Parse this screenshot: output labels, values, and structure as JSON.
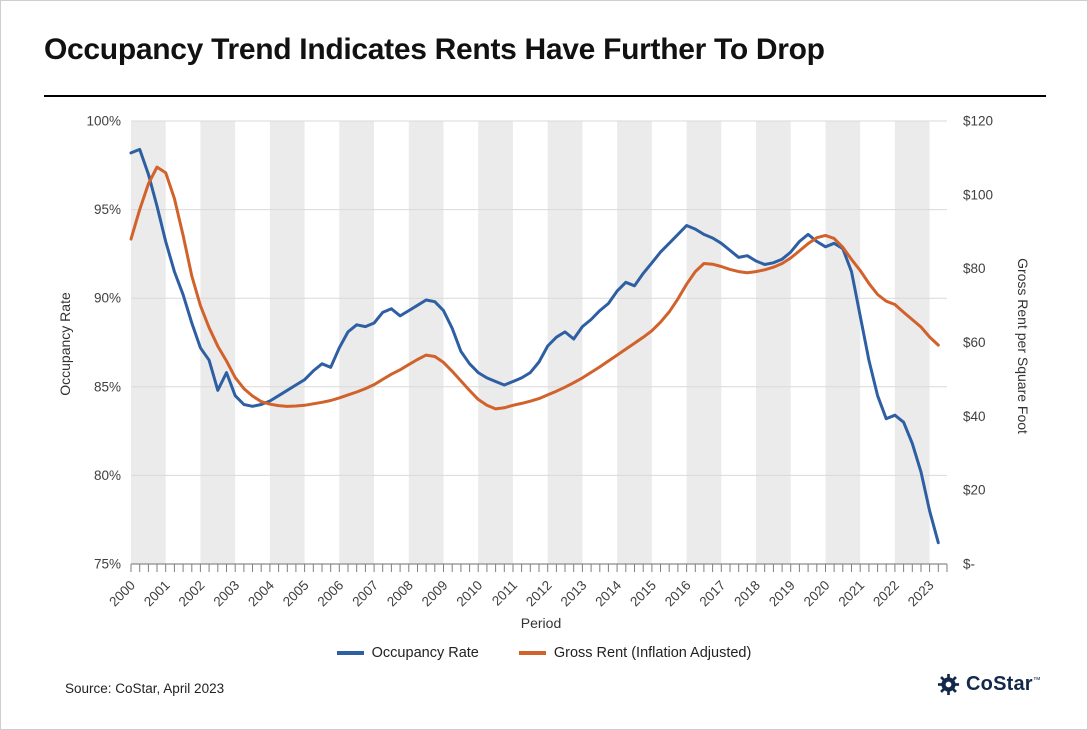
{
  "header": {
    "title": "Occupancy Trend Indicates Rents Have Further To Drop"
  },
  "footer": {
    "source": "Source: CoStar, April 2023",
    "logo_text": "CoStar",
    "logo_tm": "™"
  },
  "chart_data": {
    "type": "line",
    "title": "Occupancy Trend Indicates Rents Have Further To Drop",
    "xlabel": "Period",
    "y_left_label": "Occupancy Rate",
    "y_right_label": "Gross Rent per Square Foot",
    "x_start_year": 2000,
    "x_end_year": 2023.5,
    "x_tick_years": [
      2000,
      2001,
      2002,
      2003,
      2004,
      2005,
      2006,
      2007,
      2008,
      2009,
      2010,
      2011,
      2012,
      2013,
      2014,
      2015,
      2016,
      2017,
      2018,
      2019,
      2020,
      2021,
      2022,
      2023
    ],
    "y_left_range": [
      75,
      100
    ],
    "y_right_range": [
      0,
      120
    ],
    "y_left_ticks": [
      {
        "v": 75,
        "label": "75%"
      },
      {
        "v": 80,
        "label": "80%"
      },
      {
        "v": 85,
        "label": "85%"
      },
      {
        "v": 90,
        "label": "90%"
      },
      {
        "v": 95,
        "label": "95%"
      },
      {
        "v": 100,
        "label": "100%"
      }
    ],
    "y_right_ticks": [
      {
        "v": 0,
        "label": "$-"
      },
      {
        "v": 20,
        "label": "$20"
      },
      {
        "v": 40,
        "label": "$40"
      },
      {
        "v": 60,
        "label": "$60"
      },
      {
        "v": 80,
        "label": "$80"
      },
      {
        "v": 100,
        "label": "$100"
      },
      {
        "v": 120,
        "label": "$120"
      }
    ],
    "band_color": "#EBEBEB",
    "grid_color": "#D9D9D9",
    "axis_line_color": "#8C8C8C",
    "series": [
      {
        "name": "Occupancy Rate",
        "color": "#2E5FA3",
        "axis": "left",
        "start_year": 2000,
        "interval_years": 0.25,
        "values": [
          98.2,
          98.4,
          97.0,
          95.2,
          93.2,
          91.5,
          90.2,
          88.6,
          87.2,
          86.5,
          84.8,
          85.8,
          84.5,
          84.0,
          83.9,
          84.0,
          84.2,
          84.5,
          84.8,
          85.1,
          85.4,
          85.9,
          86.3,
          86.1,
          87.2,
          88.1,
          88.5,
          88.4,
          88.6,
          89.2,
          89.4,
          89.0,
          89.3,
          89.6,
          89.9,
          89.8,
          89.3,
          88.3,
          87.0,
          86.3,
          85.8,
          85.5,
          85.3,
          85.1,
          85.3,
          85.5,
          85.8,
          86.4,
          87.3,
          87.8,
          88.1,
          87.7,
          88.4,
          88.8,
          89.3,
          89.7,
          90.4,
          90.9,
          90.7,
          91.4,
          92.0,
          92.6,
          93.1,
          93.6,
          94.1,
          93.9,
          93.6,
          93.4,
          93.1,
          92.7,
          92.3,
          92.4,
          92.1,
          91.9,
          92.0,
          92.2,
          92.6,
          93.2,
          93.6,
          93.2,
          92.9,
          93.1,
          92.8,
          91.5,
          89.0,
          86.5,
          84.5,
          83.2,
          83.4,
          83.0,
          81.8,
          80.2,
          78.0,
          76.2
        ]
      },
      {
        "name": "Gross Rent (Inflation Adjusted)",
        "color": "#D2622B",
        "axis": "right",
        "start_year": 2000,
        "interval_years": 0.25,
        "values": [
          88.0,
          96.0,
          103.0,
          107.5,
          106.0,
          99.0,
          89.0,
          78.0,
          70.0,
          64.0,
          59.0,
          55.0,
          50.5,
          47.5,
          45.5,
          44.0,
          43.3,
          42.9,
          42.7,
          42.8,
          43.0,
          43.4,
          43.8,
          44.3,
          45.0,
          45.8,
          46.6,
          47.5,
          48.6,
          50.0,
          51.4,
          52.6,
          54.0,
          55.4,
          56.6,
          56.2,
          54.6,
          52.2,
          49.6,
          47.0,
          44.6,
          43.0,
          42.0,
          42.3,
          43.0,
          43.5,
          44.1,
          44.8,
          45.8,
          46.8,
          47.9,
          49.1,
          50.4,
          51.9,
          53.4,
          55.0,
          56.6,
          58.2,
          59.8,
          61.4,
          63.2,
          65.5,
          68.3,
          71.8,
          75.8,
          79.2,
          81.4,
          81.2,
          80.6,
          79.8,
          79.2,
          78.9,
          79.2,
          79.7,
          80.4,
          81.4,
          82.9,
          84.8,
          86.8,
          88.4,
          89.0,
          88.2,
          85.8,
          82.5,
          79.5,
          76.0,
          73.0,
          71.2,
          70.3,
          68.2,
          66.2,
          64.2,
          61.5,
          59.3
        ]
      }
    ],
    "legend_position": "bottom"
  }
}
